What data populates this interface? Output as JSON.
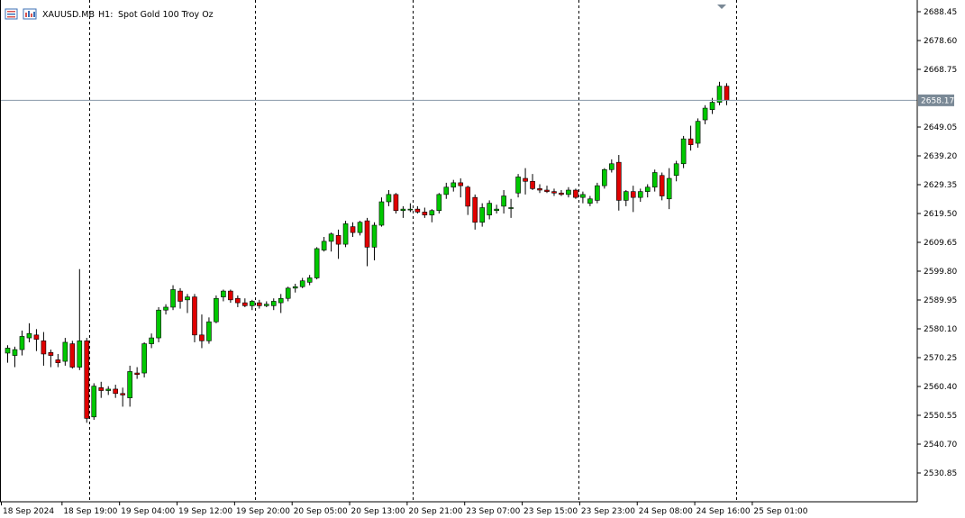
{
  "header": {
    "symbol": "XAUUSD.MB",
    "timeframe": "H1:",
    "description": "Spot Gold 100 Troy Oz",
    "icons": [
      "list-icon",
      "chart-window-icon"
    ]
  },
  "colors": {
    "bull": "#00c800",
    "bear": "#e00000",
    "wick": "#000000",
    "grid": "#000000",
    "price_line": "#8a9aaa",
    "price_tag_bg": "#7a8996",
    "axis": "#000000",
    "background": "#ffffff"
  },
  "chart_data": {
    "type": "candlestick",
    "symbol": "XAUUSD.MB",
    "timeframe": "H1",
    "current_price": 2658.17,
    "current_price_label": "2658.17",
    "y_ticks": [
      "2688.45",
      "2678.60",
      "2668.75",
      "2649.05",
      "2639.20",
      "2629.35",
      "2619.50",
      "2609.65",
      "2599.80",
      "2589.95",
      "2580.10",
      "2570.25",
      "2560.40",
      "2550.55",
      "2540.70",
      "2530.85"
    ],
    "x_ticks": [
      "18 Sep 2024",
      "18 Sep 19:00",
      "19 Sep 04:00",
      "19 Sep 12:00",
      "19 Sep 20:00",
      "20 Sep 05:00",
      "20 Sep 13:00",
      "20 Sep 21:00",
      "23 Sep 07:00",
      "23 Sep 15:00",
      "23 Sep 23:00",
      "24 Sep 08:00",
      "24 Sep 16:00",
      "25 Sep 01:00"
    ],
    "grid": "vertical dashed separators",
    "candles": [
      {
        "o": 2571.8,
        "h": 2574.5,
        "l": 2568.5,
        "c": 2573.5
      },
      {
        "o": 2571.0,
        "h": 2574.0,
        "l": 2567.0,
        "c": 2573.0
      },
      {
        "o": 2573.0,
        "h": 2579.5,
        "l": 2571.0,
        "c": 2577.5
      },
      {
        "o": 2577.0,
        "h": 2582.0,
        "l": 2575.5,
        "c": 2578.5
      },
      {
        "o": 2578.0,
        "h": 2580.0,
        "l": 2572.5,
        "c": 2576.5
      },
      {
        "o": 2576.0,
        "h": 2579.0,
        "l": 2567.5,
        "c": 2571.5
      },
      {
        "o": 2572.0,
        "h": 2573.0,
        "l": 2567.0,
        "c": 2571.0
      },
      {
        "o": 2569.5,
        "h": 2571.5,
        "l": 2567.0,
        "c": 2568.5
      },
      {
        "o": 2569.0,
        "h": 2577.0,
        "l": 2567.5,
        "c": 2575.5
      },
      {
        "o": 2575.0,
        "h": 2576.0,
        "l": 2566.5,
        "c": 2567.0
      },
      {
        "o": 2567.0,
        "h": 2600.5,
        "l": 2566.0,
        "c": 2576.0
      },
      {
        "o": 2576.0,
        "h": 2577.0,
        "l": 2548.0,
        "c": 2549.5
      },
      {
        "o": 2550.0,
        "h": 2561.5,
        "l": 2549.0,
        "c": 2560.5
      },
      {
        "o": 2560.0,
        "h": 2562.0,
        "l": 2556.5,
        "c": 2559.0
      },
      {
        "o": 2559.0,
        "h": 2560.5,
        "l": 2557.5,
        "c": 2559.5
      },
      {
        "o": 2559.5,
        "h": 2561.0,
        "l": 2556.5,
        "c": 2558.0
      },
      {
        "o": 2558.0,
        "h": 2560.0,
        "l": 2553.5,
        "c": 2557.5
      },
      {
        "o": 2556.5,
        "h": 2567.5,
        "l": 2553.5,
        "c": 2565.5
      },
      {
        "o": 2565.0,
        "h": 2567.0,
        "l": 2563.0,
        "c": 2564.5
      },
      {
        "o": 2565.0,
        "h": 2575.5,
        "l": 2563.5,
        "c": 2575.0
      },
      {
        "o": 2575.0,
        "h": 2578.5,
        "l": 2573.5,
        "c": 2577.0
      },
      {
        "o": 2577.0,
        "h": 2587.5,
        "l": 2575.5,
        "c": 2586.5
      },
      {
        "o": 2586.5,
        "h": 2588.5,
        "l": 2585.0,
        "c": 2587.5
      },
      {
        "o": 2587.5,
        "h": 2595.0,
        "l": 2586.5,
        "c": 2593.5
      },
      {
        "o": 2593.0,
        "h": 2594.0,
        "l": 2587.0,
        "c": 2589.5
      },
      {
        "o": 2590.0,
        "h": 2592.0,
        "l": 2585.5,
        "c": 2591.0
      },
      {
        "o": 2591.0,
        "h": 2592.0,
        "l": 2575.5,
        "c": 2578.0
      },
      {
        "o": 2578.0,
        "h": 2585.0,
        "l": 2573.5,
        "c": 2576.0
      },
      {
        "o": 2576.0,
        "h": 2584.0,
        "l": 2575.0,
        "c": 2582.5
      },
      {
        "o": 2582.5,
        "h": 2591.5,
        "l": 2582.0,
        "c": 2590.5
      },
      {
        "o": 2591.0,
        "h": 2593.5,
        "l": 2589.5,
        "c": 2593.0
      },
      {
        "o": 2593.0,
        "h": 2593.5,
        "l": 2589.0,
        "c": 2590.0
      },
      {
        "o": 2590.5,
        "h": 2591.5,
        "l": 2587.5,
        "c": 2589.0
      },
      {
        "o": 2589.0,
        "h": 2590.5,
        "l": 2587.5,
        "c": 2588.0
      },
      {
        "o": 2588.0,
        "h": 2590.0,
        "l": 2586.5,
        "c": 2589.5
      },
      {
        "o": 2589.0,
        "h": 2590.0,
        "l": 2587.0,
        "c": 2588.0
      },
      {
        "o": 2588.0,
        "h": 2589.5,
        "l": 2587.5,
        "c": 2588.5
      },
      {
        "o": 2588.0,
        "h": 2590.5,
        "l": 2586.5,
        "c": 2589.5
      },
      {
        "o": 2589.0,
        "h": 2592.0,
        "l": 2585.5,
        "c": 2590.5
      },
      {
        "o": 2590.5,
        "h": 2594.5,
        "l": 2589.5,
        "c": 2594.0
      },
      {
        "o": 2594.0,
        "h": 2595.5,
        "l": 2592.5,
        "c": 2594.5
      },
      {
        "o": 2594.5,
        "h": 2597.5,
        "l": 2594.0,
        "c": 2596.5
      },
      {
        "o": 2596.0,
        "h": 2598.5,
        "l": 2595.0,
        "c": 2597.5
      },
      {
        "o": 2597.5,
        "h": 2608.0,
        "l": 2597.0,
        "c": 2607.5
      },
      {
        "o": 2607.0,
        "h": 2611.5,
        "l": 2606.5,
        "c": 2610.0
      },
      {
        "o": 2610.0,
        "h": 2613.0,
        "l": 2606.5,
        "c": 2612.5
      },
      {
        "o": 2612.0,
        "h": 2614.0,
        "l": 2604.0,
        "c": 2609.0
      },
      {
        "o": 2609.0,
        "h": 2617.0,
        "l": 2608.0,
        "c": 2616.0
      },
      {
        "o": 2615.0,
        "h": 2616.5,
        "l": 2611.5,
        "c": 2613.0
      },
      {
        "o": 2613.0,
        "h": 2617.0,
        "l": 2612.0,
        "c": 2616.5
      },
      {
        "o": 2617.0,
        "h": 2618.0,
        "l": 2601.5,
        "c": 2608.0
      },
      {
        "o": 2608.0,
        "h": 2616.5,
        "l": 2603.5,
        "c": 2615.5
      },
      {
        "o": 2615.5,
        "h": 2625.0,
        "l": 2615.0,
        "c": 2623.5
      },
      {
        "o": 2623.5,
        "h": 2627.5,
        "l": 2622.0,
        "c": 2626.0
      },
      {
        "o": 2626.0,
        "h": 2626.5,
        "l": 2619.5,
        "c": 2620.5
      },
      {
        "o": 2620.5,
        "h": 2622.0,
        "l": 2618.0,
        "c": 2621.0
      },
      {
        "o": 2621.0,
        "h": 2623.0,
        "l": 2620.0,
        "c": 2621.0
      },
      {
        "o": 2621.0,
        "h": 2622.0,
        "l": 2619.5,
        "c": 2620.0
      },
      {
        "o": 2620.0,
        "h": 2621.5,
        "l": 2618.0,
        "c": 2619.0
      },
      {
        "o": 2619.0,
        "h": 2621.0,
        "l": 2616.5,
        "c": 2620.5
      },
      {
        "o": 2620.5,
        "h": 2626.5,
        "l": 2619.5,
        "c": 2626.0
      },
      {
        "o": 2626.0,
        "h": 2630.0,
        "l": 2624.5,
        "c": 2628.5
      },
      {
        "o": 2628.5,
        "h": 2631.0,
        "l": 2627.0,
        "c": 2630.0
      },
      {
        "o": 2630.0,
        "h": 2631.5,
        "l": 2625.0,
        "c": 2629.0
      },
      {
        "o": 2628.5,
        "h": 2629.0,
        "l": 2619.0,
        "c": 2622.0
      },
      {
        "o": 2625.0,
        "h": 2626.0,
        "l": 2614.0,
        "c": 2616.5
      },
      {
        "o": 2616.5,
        "h": 2623.0,
        "l": 2615.0,
        "c": 2621.5
      },
      {
        "o": 2619.0,
        "h": 2624.0,
        "l": 2617.5,
        "c": 2623.0
      },
      {
        "o": 2620.5,
        "h": 2622.5,
        "l": 2619.5,
        "c": 2621.0
      },
      {
        "o": 2622.0,
        "h": 2627.5,
        "l": 2619.5,
        "c": 2625.5
      },
      {
        "o": 2621.5,
        "h": 2624.5,
        "l": 2618.0,
        "c": 2621.5
      },
      {
        "o": 2626.5,
        "h": 2633.0,
        "l": 2625.0,
        "c": 2632.0
      },
      {
        "o": 2631.5,
        "h": 2635.0,
        "l": 2626.0,
        "c": 2630.5
      },
      {
        "o": 2630.5,
        "h": 2633.0,
        "l": 2627.5,
        "c": 2628.0
      },
      {
        "o": 2628.0,
        "h": 2629.5,
        "l": 2626.5,
        "c": 2627.5
      },
      {
        "o": 2627.5,
        "h": 2629.0,
        "l": 2626.5,
        "c": 2627.0
      },
      {
        "o": 2627.0,
        "h": 2628.0,
        "l": 2625.5,
        "c": 2626.5
      },
      {
        "o": 2626.5,
        "h": 2627.5,
        "l": 2625.5,
        "c": 2626.0
      },
      {
        "o": 2626.0,
        "h": 2628.5,
        "l": 2625.0,
        "c": 2627.5
      },
      {
        "o": 2627.5,
        "h": 2628.0,
        "l": 2624.5,
        "c": 2625.0
      },
      {
        "o": 2625.0,
        "h": 2627.0,
        "l": 2623.0,
        "c": 2626.0
      },
      {
        "o": 2623.0,
        "h": 2625.5,
        "l": 2622.0,
        "c": 2624.5
      },
      {
        "o": 2624.0,
        "h": 2630.0,
        "l": 2623.0,
        "c": 2629.0
      },
      {
        "o": 2629.0,
        "h": 2635.0,
        "l": 2628.0,
        "c": 2634.5
      },
      {
        "o": 2634.5,
        "h": 2638.0,
        "l": 2633.5,
        "c": 2636.5
      },
      {
        "o": 2637.0,
        "h": 2639.5,
        "l": 2620.5,
        "c": 2624.0
      },
      {
        "o": 2624.0,
        "h": 2627.5,
        "l": 2622.0,
        "c": 2627.0
      },
      {
        "o": 2627.0,
        "h": 2629.0,
        "l": 2620.0,
        "c": 2625.0
      },
      {
        "o": 2625.0,
        "h": 2628.0,
        "l": 2623.5,
        "c": 2627.0
      },
      {
        "o": 2627.0,
        "h": 2629.5,
        "l": 2625.0,
        "c": 2628.5
      },
      {
        "o": 2628.5,
        "h": 2634.5,
        "l": 2627.0,
        "c": 2633.5
      },
      {
        "o": 2632.5,
        "h": 2633.5,
        "l": 2624.0,
        "c": 2625.5
      },
      {
        "o": 2624.5,
        "h": 2635.0,
        "l": 2621.0,
        "c": 2631.5
      },
      {
        "o": 2632.5,
        "h": 2637.5,
        "l": 2630.5,
        "c": 2636.5
      },
      {
        "o": 2636.5,
        "h": 2646.0,
        "l": 2635.0,
        "c": 2645.0
      },
      {
        "o": 2645.0,
        "h": 2649.5,
        "l": 2641.0,
        "c": 2643.0
      },
      {
        "o": 2643.5,
        "h": 2652.0,
        "l": 2642.0,
        "c": 2651.0
      },
      {
        "o": 2651.5,
        "h": 2656.5,
        "l": 2650.0,
        "c": 2655.5
      },
      {
        "o": 2655.0,
        "h": 2659.0,
        "l": 2653.5,
        "c": 2657.5
      },
      {
        "o": 2657.5,
        "h": 2664.5,
        "l": 2656.5,
        "c": 2663.0
      },
      {
        "o": 2663.0,
        "h": 2664.0,
        "l": 2656.5,
        "c": 2658.2
      }
    ]
  }
}
